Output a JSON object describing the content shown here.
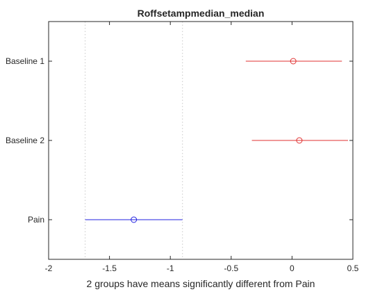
{
  "chart_data": {
    "type": "scatter",
    "title": "Roffsetampmedian_median",
    "xlabel": "2 groups have means significantly different from Pain",
    "ylabel": "",
    "xlim": [
      -2,
      0.5
    ],
    "xticks": [
      -2,
      -1.5,
      -1,
      -0.5,
      0,
      0.5
    ],
    "xtick_labels": [
      "-2",
      "-1.5",
      "-1",
      "-0.5",
      "0",
      "0.5"
    ],
    "categories": [
      "Baseline 1",
      "Baseline 2",
      "Pain"
    ],
    "series": [
      {
        "label": "Baseline 1",
        "mean": 0.01,
        "lower": -0.38,
        "upper": 0.41,
        "color": "#e03030"
      },
      {
        "label": "Baseline 2",
        "mean": 0.06,
        "lower": -0.33,
        "upper": 0.46,
        "color": "#e03030"
      },
      {
        "label": "Pain",
        "mean": -1.3,
        "lower": -1.7,
        "upper": -0.9,
        "color": "#2020e0"
      }
    ],
    "reference_lines": [
      -1.7,
      -0.9
    ],
    "grid": false,
    "box_color": "#262626",
    "reference_line_color": "#c8c8c8"
  }
}
